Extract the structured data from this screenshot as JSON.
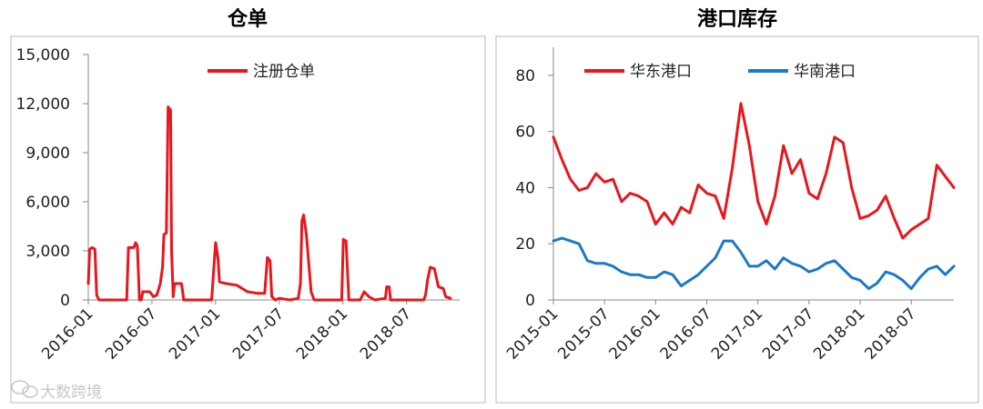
{
  "chart_data": [
    {
      "type": "line",
      "title": "仓单",
      "xlabel": "",
      "ylabel": "",
      "x_tick_labels": [
        "2016-01",
        "2016-07",
        "2017-01",
        "2017-07",
        "2018-01",
        "2018-07"
      ],
      "y_tick_labels": [
        "0",
        "3,000",
        "6,000",
        "9,000",
        "12,000",
        "15,000"
      ],
      "ylim": [
        0,
        15000
      ],
      "xlim": [
        "2016-01",
        "2018-12"
      ],
      "grid": false,
      "legend_position": "top-center",
      "series": [
        {
          "name": "注册仓单",
          "color": "#e8171c",
          "points": [
            [
              "2016-01",
              1000
            ],
            [
              "2016-01-05",
              3100
            ],
            [
              "2016-01-12",
              3200
            ],
            [
              "2016-01-20",
              3100
            ],
            [
              "2016-01-25",
              300
            ],
            [
              "2016-02",
              0
            ],
            [
              "2016-04-20",
              0
            ],
            [
              "2016-04-25",
              3200
            ],
            [
              "2016-05-10",
              3200
            ],
            [
              "2016-05-15",
              3500
            ],
            [
              "2016-05-20",
              3300
            ],
            [
              "2016-05-26",
              0
            ],
            [
              "2016-06-01",
              0
            ],
            [
              "2016-06-05",
              500
            ],
            [
              "2016-06-25",
              500
            ],
            [
              "2016-07-05",
              200
            ],
            [
              "2016-07-15",
              300
            ],
            [
              "2016-07-25",
              1000
            ],
            [
              "2016-08-01",
              2000
            ],
            [
              "2016-08-05",
              4000
            ],
            [
              "2016-08-12",
              4100
            ],
            [
              "2016-08-17",
              11800
            ],
            [
              "2016-08-24",
              11600
            ],
            [
              "2016-08-27",
              3000
            ],
            [
              "2016-09-01",
              200
            ],
            [
              "2016-09-05",
              1000
            ],
            [
              "2016-09-25",
              1000
            ],
            [
              "2016-10-01",
              0
            ],
            [
              "2016-12-20",
              0
            ],
            [
              "2017-01-01",
              3500
            ],
            [
              "2017-01-08",
              2500
            ],
            [
              "2017-01-12",
              1100
            ],
            [
              "2017-02-01",
              1000
            ],
            [
              "2017-03-01",
              900
            ],
            [
              "2017-04-01",
              500
            ],
            [
              "2017-05-01",
              400
            ],
            [
              "2017-05-20",
              400
            ],
            [
              "2017-05-28",
              2600
            ],
            [
              "2017-06-05",
              2400
            ],
            [
              "2017-06-10",
              200
            ],
            [
              "2017-06-20",
              0
            ],
            [
              "2017-07-01",
              100
            ],
            [
              "2017-08-01",
              0
            ],
            [
              "2017-08-25",
              100
            ],
            [
              "2017-09-01",
              1000
            ],
            [
              "2017-09-05",
              4800
            ],
            [
              "2017-09-10",
              5200
            ],
            [
              "2017-09-18",
              4000
            ],
            [
              "2017-10-01",
              500
            ],
            [
              "2017-10-10",
              0
            ],
            [
              "2017-12-28",
              0
            ],
            [
              "2018-01-02",
              3700
            ],
            [
              "2018-01-10",
              3600
            ],
            [
              "2018-01-18",
              0
            ],
            [
              "2018-02-20",
              0
            ],
            [
              "2018-03-01",
              500
            ],
            [
              "2018-03-15",
              200
            ],
            [
              "2018-04-01",
              0
            ],
            [
              "2018-05-01",
              100
            ],
            [
              "2018-05-05",
              800
            ],
            [
              "2018-05-12",
              800
            ],
            [
              "2018-05-16",
              0
            ],
            [
              "2018-08-20",
              0
            ],
            [
              "2018-08-25",
              300
            ],
            [
              "2018-09-01",
              1300
            ],
            [
              "2018-09-08",
              2000
            ],
            [
              "2018-09-20",
              1900
            ],
            [
              "2018-10-01",
              800
            ],
            [
              "2018-10-15",
              700
            ],
            [
              "2018-10-22",
              200
            ],
            [
              "2018-11-05",
              100
            ]
          ]
        }
      ]
    },
    {
      "type": "line",
      "title": "港口库存",
      "xlabel": "",
      "ylabel": "",
      "x_tick_labels": [
        "2015-01",
        "2015-07",
        "2016-01",
        "2016-07",
        "2017-01",
        "2017-07",
        "2018-01",
        "2018-07"
      ],
      "y_tick_labels": [
        "0",
        "20",
        "40",
        "60",
        "80"
      ],
      "ylim": [
        0,
        90
      ],
      "xlim": [
        "2015-01",
        "2018-12"
      ],
      "grid": false,
      "legend_position": "top",
      "series": [
        {
          "name": "华东港口",
          "color": "#e8171c",
          "points": [
            [
              "2015-01",
              58
            ],
            [
              "2015-02",
              50
            ],
            [
              "2015-03",
              43
            ],
            [
              "2015-04",
              39
            ],
            [
              "2015-05",
              40
            ],
            [
              "2015-06",
              45
            ],
            [
              "2015-07",
              42
            ],
            [
              "2015-08",
              43
            ],
            [
              "2015-09",
              35
            ],
            [
              "2015-10",
              38
            ],
            [
              "2015-11",
              37
            ],
            [
              "2015-12",
              35
            ],
            [
              "2016-01",
              27
            ],
            [
              "2016-02",
              31
            ],
            [
              "2016-03",
              27
            ],
            [
              "2016-04",
              33
            ],
            [
              "2016-05",
              31
            ],
            [
              "2016-06",
              41
            ],
            [
              "2016-07",
              38
            ],
            [
              "2016-08",
              37
            ],
            [
              "2016-09",
              29
            ],
            [
              "2016-10",
              47
            ],
            [
              "2016-11",
              70
            ],
            [
              "2016-12",
              55
            ],
            [
              "2017-01",
              35
            ],
            [
              "2017-02",
              27
            ],
            [
              "2017-03",
              37
            ],
            [
              "2017-04",
              55
            ],
            [
              "2017-05",
              45
            ],
            [
              "2017-06",
              50
            ],
            [
              "2017-07",
              38
            ],
            [
              "2017-08",
              36
            ],
            [
              "2017-09",
              45
            ],
            [
              "2017-10",
              58
            ],
            [
              "2017-11",
              56
            ],
            [
              "2017-12",
              40
            ],
            [
              "2018-01",
              29
            ],
            [
              "2018-02",
              30
            ],
            [
              "2018-03",
              32
            ],
            [
              "2018-04",
              37
            ],
            [
              "2018-05",
              29
            ],
            [
              "2018-06",
              22
            ],
            [
              "2018-07",
              25
            ],
            [
              "2018-08",
              27
            ],
            [
              "2018-09",
              29
            ],
            [
              "2018-10",
              48
            ],
            [
              "2018-11",
              44
            ],
            [
              "2018-12",
              40
            ]
          ]
        },
        {
          "name": "华南港口",
          "color": "#1a7ac6",
          "points": [
            [
              "2015-01",
              21
            ],
            [
              "2015-02",
              22
            ],
            [
              "2015-03",
              21
            ],
            [
              "2015-04",
              20
            ],
            [
              "2015-05",
              14
            ],
            [
              "2015-06",
              13
            ],
            [
              "2015-07",
              13
            ],
            [
              "2015-08",
              12
            ],
            [
              "2015-09",
              10
            ],
            [
              "2015-10",
              9
            ],
            [
              "2015-11",
              9
            ],
            [
              "2015-12",
              8
            ],
            [
              "2016-01",
              8
            ],
            [
              "2016-02",
              10
            ],
            [
              "2016-03",
              9
            ],
            [
              "2016-04",
              5
            ],
            [
              "2016-05",
              7
            ],
            [
              "2016-06",
              9
            ],
            [
              "2016-07",
              12
            ],
            [
              "2016-08",
              15
            ],
            [
              "2016-09",
              21
            ],
            [
              "2016-10",
              21
            ],
            [
              "2016-11",
              17
            ],
            [
              "2016-12",
              12
            ],
            [
              "2017-01",
              12
            ],
            [
              "2017-02",
              14
            ],
            [
              "2017-03",
              11
            ],
            [
              "2017-04",
              15
            ],
            [
              "2017-05",
              13
            ],
            [
              "2017-06",
              12
            ],
            [
              "2017-07",
              10
            ],
            [
              "2017-08",
              11
            ],
            [
              "2017-09",
              13
            ],
            [
              "2017-10",
              14
            ],
            [
              "2017-11",
              11
            ],
            [
              "2017-12",
              8
            ],
            [
              "2018-01",
              7
            ],
            [
              "2018-02",
              4
            ],
            [
              "2018-03",
              6
            ],
            [
              "2018-04",
              10
            ],
            [
              "2018-05",
              9
            ],
            [
              "2018-06",
              7
            ],
            [
              "2018-07",
              4
            ],
            [
              "2018-08",
              8
            ],
            [
              "2018-09",
              11
            ],
            [
              "2018-10",
              12
            ],
            [
              "2018-11",
              9
            ],
            [
              "2018-12",
              12
            ]
          ]
        }
      ]
    }
  ],
  "watermark": {
    "text": "大数跨境",
    "icon": "wechat-logo-icon"
  }
}
